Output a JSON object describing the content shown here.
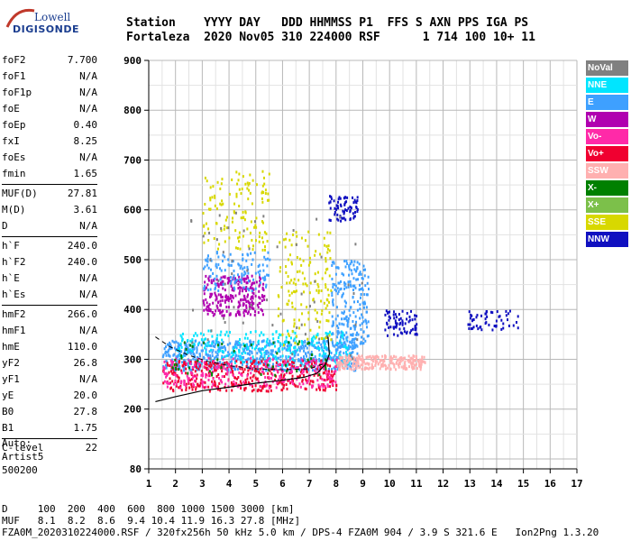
{
  "logo": {
    "line1": "Lowell",
    "line2": "DIGISONDE"
  },
  "header": {
    "row1": "Station    YYYY DAY   DDD HHMMSS P1  FFS S AXN PPS IGA PS",
    "row2": "Fortaleza  2020 Nov05 310 224000 RSF      1 714 100 10+ 11"
  },
  "params": {
    "group1": [
      {
        "k": "foF2",
        "v": "7.700"
      },
      {
        "k": "foF1",
        "v": "N/A"
      },
      {
        "k": "foF1p",
        "v": "N/A"
      },
      {
        "k": "foE",
        "v": "N/A"
      },
      {
        "k": "foEp",
        "v": "0.40"
      },
      {
        "k": "fxI",
        "v": "8.25"
      },
      {
        "k": "foEs",
        "v": "N/A"
      },
      {
        "k": "fmin",
        "v": "1.65"
      }
    ],
    "group2": [
      {
        "k": "MUF(D)",
        "v": "27.81"
      },
      {
        "k": "M(D)",
        "v": "3.61"
      },
      {
        "k": "D",
        "v": "N/A"
      }
    ],
    "group3": [
      {
        "k": "h`F",
        "v": "240.0"
      },
      {
        "k": "h`F2",
        "v": "240.0"
      },
      {
        "k": "h`E",
        "v": "N/A"
      },
      {
        "k": "h`Es",
        "v": "N/A"
      }
    ],
    "group4": [
      {
        "k": "hmF2",
        "v": "266.0"
      },
      {
        "k": "hmF1",
        "v": "N/A"
      },
      {
        "k": "hmE",
        "v": "110.0"
      },
      {
        "k": "yF2",
        "v": "26.8"
      },
      {
        "k": "yF1",
        "v": "N/A"
      },
      {
        "k": "yE",
        "v": "20.0"
      },
      {
        "k": "B0",
        "v": "27.8"
      },
      {
        "k": "B1",
        "v": "1.75"
      }
    ],
    "group5": [
      {
        "k": "C-level",
        "v": "22"
      }
    ]
  },
  "auto": {
    "line1": "Auto:",
    "line2": "Artist5",
    "line3": "500200"
  },
  "legend": [
    {
      "label": "NoVal",
      "color": "#808080"
    },
    {
      "label": "NNE",
      "color": "#00e5ff"
    },
    {
      "label": "E",
      "color": "#3ea0ff"
    },
    {
      "label": "W",
      "color": "#b000b0"
    },
    {
      "label": "Vo-",
      "color": "#ff2aa8"
    },
    {
      "label": "Vo+",
      "color": "#f00030"
    },
    {
      "label": "SSW",
      "color": "#ffb0b0"
    },
    {
      "label": "X-",
      "color": "#008000"
    },
    {
      "label": "X+",
      "color": "#7cc04a"
    },
    {
      "label": "SSE",
      "color": "#d8d800"
    },
    {
      "label": "NNW",
      "color": "#1010c0"
    }
  ],
  "footer": {
    "row1": "D     100  200  400  600  800 1000 1500 3000 [km]",
    "row2": "MUF   8.1  8.2  8.6  9.4 10.4 11.9 16.3 27.8 [MHz]",
    "row3": "FZA0M_2020310224000.RSF / 320fx256h 50 kHz 5.0 km / DPS-4 FZA0M 904 / 3.9 S 321.6 E   Ion2Png 1.3.20"
  },
  "chart_data": {
    "type": "scatter",
    "xlim": [
      1,
      17
    ],
    "ylim": [
      80,
      900
    ],
    "xticks": [
      1,
      2,
      3,
      4,
      5,
      6,
      7,
      8,
      9,
      10,
      11,
      12,
      13,
      14,
      15,
      16,
      17
    ],
    "yticks": [
      80,
      200,
      300,
      400,
      500,
      600,
      700,
      800,
      900
    ],
    "grid": true,
    "clusters": [
      {
        "color": "#b000b0",
        "x": [
          3.0,
          5.3
        ],
        "y": [
          390,
          470
        ],
        "n": 260
      },
      {
        "color": "#d8d800",
        "x": [
          3.0,
          5.5
        ],
        "y": [
          520,
          680
        ],
        "n": 130
      },
      {
        "color": "#3ea0ff",
        "x": [
          3.0,
          5.5
        ],
        "y": [
          440,
          520
        ],
        "n": 120
      },
      {
        "color": "#3ea0ff",
        "x": [
          1.5,
          8.8
        ],
        "y": [
          280,
          340
        ],
        "n": 700
      },
      {
        "color": "#00e5ff",
        "x": [
          2.0,
          8.5
        ],
        "y": [
          290,
          360
        ],
        "n": 260
      },
      {
        "color": "#f00030",
        "x": [
          1.5,
          8.0
        ],
        "y": [
          238,
          300
        ],
        "n": 400
      },
      {
        "color": "#ff2aa8",
        "x": [
          1.5,
          8.0
        ],
        "y": [
          245,
          305
        ],
        "n": 260
      },
      {
        "color": "#ffb0b0",
        "x": [
          8.0,
          11.3
        ],
        "y": [
          282,
          310
        ],
        "n": 260
      },
      {
        "color": "#1010c0",
        "x": [
          7.7,
          8.8
        ],
        "y": [
          580,
          630
        ],
        "n": 70
      },
      {
        "color": "#3ea0ff",
        "x": [
          7.8,
          9.2
        ],
        "y": [
          330,
          500
        ],
        "n": 220
      },
      {
        "color": "#1010c0",
        "x": [
          9.8,
          11.0
        ],
        "y": [
          350,
          400
        ],
        "n": 70
      },
      {
        "color": "#1010c0",
        "x": [
          12.9,
          14.8
        ],
        "y": [
          360,
          400
        ],
        "n": 55
      },
      {
        "color": "#d8d800",
        "x": [
          5.8,
          7.8
        ],
        "y": [
          330,
          560
        ],
        "n": 150
      },
      {
        "color": "#008000",
        "x": [
          1.8,
          8.0
        ],
        "y": [
          270,
          340
        ],
        "n": 50
      },
      {
        "color": "#808080",
        "x": [
          2.5,
          9.0
        ],
        "y": [
          300,
          600
        ],
        "n": 60
      }
    ],
    "profile_solid": [
      [
        1.25,
        215
      ],
      [
        2.0,
        225
      ],
      [
        3.0,
        237
      ],
      [
        4.0,
        244
      ],
      [
        5.0,
        252
      ],
      [
        6.0,
        258
      ],
      [
        6.8,
        264
      ],
      [
        7.3,
        272
      ],
      [
        7.6,
        290
      ],
      [
        7.75,
        310
      ],
      [
        7.7,
        345
      ]
    ],
    "profile_dashed": [
      [
        1.25,
        345
      ],
      [
        1.8,
        325
      ],
      [
        2.5,
        308
      ],
      [
        3.2,
        296
      ],
      [
        4.0,
        287
      ],
      [
        5.0,
        281
      ],
      [
        6.0,
        279
      ],
      [
        7.0,
        281
      ],
      [
        7.6,
        292
      ]
    ]
  }
}
